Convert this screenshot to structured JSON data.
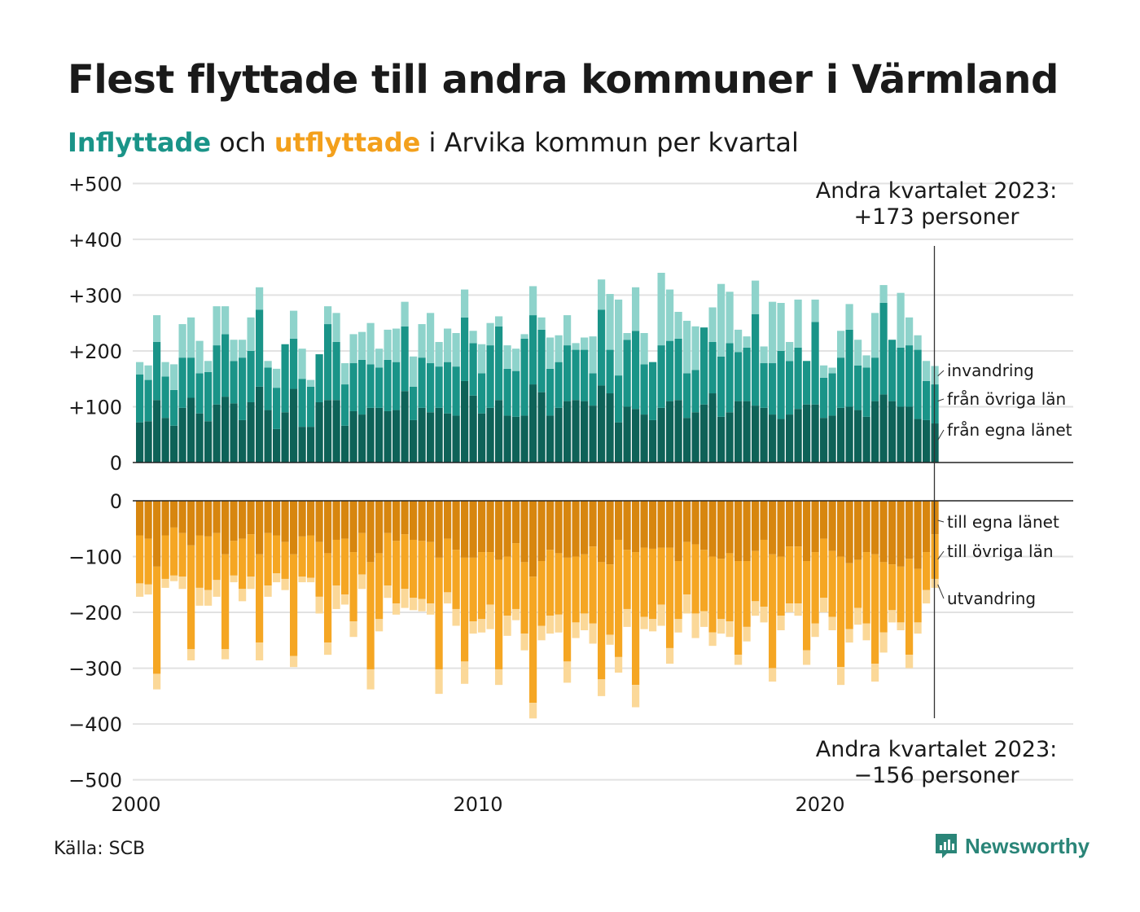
{
  "title": "Flest flyttade till andra kommuner i Värmland",
  "subtitle": {
    "part_in": "Inflyttade",
    "part_and": "och",
    "part_out": "utflyttade",
    "part_rest": "i Arvika  kommun  per  kvartal"
  },
  "source": "Källa: SCB",
  "brand": "Newsworthy",
  "colors": {
    "in_egna": "#0e6258",
    "in_ovriga": "#1a9488",
    "in_invandring": "#8ed3cb",
    "out_egna": "#d7860f",
    "out_ovriga": "#f5a623",
    "out_utvandring": "#fbd898"
  },
  "chart_data": {
    "type": "bar",
    "stacked": true,
    "x_start_year": 2000,
    "x_ticks": [
      "2000",
      "2010",
      "2020"
    ],
    "y_ticks_top": [
      "+500",
      "+400",
      "+300",
      "+200",
      "+100",
      "0"
    ],
    "y_ticks_bottom": [
      "0",
      "−100",
      "−200",
      "−300",
      "−400",
      "−500"
    ],
    "ylim_top": [
      0,
      500
    ],
    "ylim_bottom": [
      -500,
      0
    ],
    "grid": true,
    "annotation_top": [
      "Andra kvartalet 2023:",
      "+173 personer"
    ],
    "annotation_bottom": [
      "Andra kvartalet 2023:",
      "−156 personer"
    ],
    "legend_in": [
      "invandring",
      "från övriga län",
      "från egna länet"
    ],
    "legend_out": [
      "till egna länet",
      "till övriga län",
      "utvandring"
    ],
    "inflow_series": [
      {
        "name": "från egna länet",
        "values": [
          72,
          74,
          112,
          80,
          66,
          98,
          116,
          88,
          74,
          104,
          118,
          106,
          76,
          108,
          136,
          94,
          60,
          90,
          132,
          64,
          64,
          108,
          112,
          112,
          66,
          92,
          86,
          98,
          98,
          92,
          94,
          128,
          76,
          98,
          90,
          98,
          88,
          84,
          146,
          120,
          88,
          98,
          112,
          84,
          82,
          84,
          140,
          126,
          84,
          98,
          110,
          112,
          110,
          102,
          138,
          124,
          72,
          100,
          96,
          86,
          76,
          98,
          110,
          112,
          80,
          90,
          104,
          124,
          82,
          90,
          110,
          110,
          102,
          98,
          86,
          78,
          86,
          96,
          104,
          104,
          80,
          84,
          98,
          100,
          94,
          82,
          110,
          122,
          110,
          100,
          100,
          78,
          76,
          70
        ]
      },
      {
        "name": "från övriga län",
        "values": [
          86,
          74,
          104,
          74,
          64,
          90,
          72,
          72,
          88,
          106,
          112,
          76,
          112,
          92,
          138,
          76,
          74,
          122,
          90,
          86,
          72,
          86,
          136,
          104,
          74,
          86,
          98,
          78,
          72,
          92,
          86,
          116,
          60,
          90,
          88,
          74,
          92,
          88,
          114,
          94,
          72,
          112,
          132,
          84,
          82,
          138,
          124,
          112,
          84,
          82,
          100,
          90,
          92,
          58,
          136,
          78,
          84,
          120,
          140,
          90,
          104,
          112,
          108,
          110,
          80,
          76,
          138,
          92,
          108,
          124,
          88,
          96,
          164,
          80,
          92,
          122,
          96,
          110,
          78,
          148,
          72,
          76,
          90,
          138,
          80,
          88,
          78,
          164,
          110,
          106,
          110,
          124,
          70,
          70
        ]
      },
      {
        "name": "invandring",
        "values": [
          22,
          26,
          48,
          26,
          46,
          60,
          72,
          58,
          20,
          70,
          50,
          38,
          32,
          60,
          40,
          12,
          34,
          0,
          50,
          54,
          12,
          0,
          32,
          52,
          38,
          52,
          50,
          74,
          34,
          54,
          60,
          44,
          54,
          60,
          90,
          44,
          60,
          60,
          50,
          22,
          52,
          40,
          18,
          42,
          40,
          8,
          52,
          22,
          56,
          48,
          54,
          12,
          22,
          66,
          54,
          100,
          136,
          12,
          78,
          56,
          0,
          130,
          92,
          48,
          94,
          78,
          0,
          62,
          130,
          92,
          40,
          20,
          60,
          30,
          110,
          86,
          34,
          86,
          0,
          40,
          22,
          10,
          48,
          46,
          46,
          22,
          80,
          32,
          0,
          98,
          50,
          26,
          36,
          33
        ]
      }
    ],
    "outflow_series": [
      {
        "name": "till egna länet",
        "values": [
          -62,
          -68,
          -118,
          -62,
          -48,
          -58,
          -80,
          -62,
          -64,
          -58,
          -96,
          -72,
          -68,
          -60,
          -96,
          -58,
          -62,
          -74,
          -96,
          -64,
          -62,
          -74,
          -94,
          -70,
          -68,
          -92,
          -58,
          -110,
          -94,
          -58,
          -72,
          -60,
          -70,
          -72,
          -74,
          -102,
          -68,
          -88,
          -102,
          -102,
          -92,
          -92,
          -106,
          -100,
          -76,
          -110,
          -136,
          -108,
          -88,
          -94,
          -102,
          -100,
          -96,
          -82,
          -110,
          -114,
          -70,
          -88,
          -92,
          -84,
          -86,
          -84,
          -84,
          -108,
          -74,
          -78,
          -88,
          -100,
          -104,
          -94,
          -108,
          -108,
          -90,
          -70,
          -96,
          -100,
          -82,
          -82,
          -108,
          -92,
          -68,
          -90,
          -100,
          -112,
          -106,
          -92,
          -96,
          -110,
          -114,
          -118,
          -104,
          -122,
          -92,
          -60
        ]
      },
      {
        "name": "till övriga län",
        "values": [
          -86,
          -82,
          -192,
          -78,
          -86,
          -78,
          -186,
          -94,
          -96,
          -84,
          -170,
          -62,
          -90,
          -76,
          -158,
          -94,
          -68,
          -66,
          -182,
          -72,
          -76,
          -98,
          -160,
          -82,
          -100,
          -124,
          -74,
          -192,
          -118,
          -94,
          -112,
          -98,
          -104,
          -104,
          -110,
          -200,
          -96,
          -106,
          -186,
          -114,
          -120,
          -94,
          -196,
          -106,
          -118,
          -128,
          -226,
          -116,
          -118,
          -110,
          -186,
          -118,
          -106,
          -138,
          -210,
          -126,
          -210,
          -106,
          -238,
          -124,
          -126,
          -102,
          -180,
          -104,
          -94,
          -124,
          -110,
          -136,
          -108,
          -122,
          -168,
          -118,
          -90,
          -120,
          -204,
          -106,
          -102,
          -102,
          -160,
          -128,
          -106,
          -118,
          -198,
          -118,
          -86,
          -128,
          -196,
          -126,
          -82,
          -100,
          -172,
          -96,
          -68,
          -80
        ]
      },
      {
        "name": "utvandring",
        "values": [
          -24,
          -18,
          -28,
          -16,
          -10,
          -22,
          -20,
          -32,
          -28,
          -30,
          -18,
          -12,
          -22,
          -22,
          -32,
          -20,
          -16,
          -20,
          -20,
          -10,
          -8,
          -30,
          -22,
          -42,
          -18,
          -28,
          -26,
          -36,
          -22,
          -22,
          -20,
          -34,
          -22,
          -22,
          -20,
          -44,
          -20,
          -30,
          -40,
          -22,
          -24,
          -44,
          -28,
          -36,
          -20,
          -30,
          -28,
          -26,
          -32,
          -32,
          -38,
          -28,
          -30,
          -36,
          -30,
          -18,
          -28,
          -32,
          -40,
          -22,
          -22,
          -38,
          -28,
          -24,
          -34,
          -44,
          -28,
          -24,
          -26,
          -28,
          -18,
          -26,
          -26,
          -28,
          -24,
          -26,
          -16,
          -22,
          -26,
          -24,
          -26,
          -24,
          -32,
          -24,
          -30,
          -30,
          -32,
          -36,
          -22,
          -14,
          -24,
          -20,
          -24,
          -16
        ]
      }
    ]
  }
}
